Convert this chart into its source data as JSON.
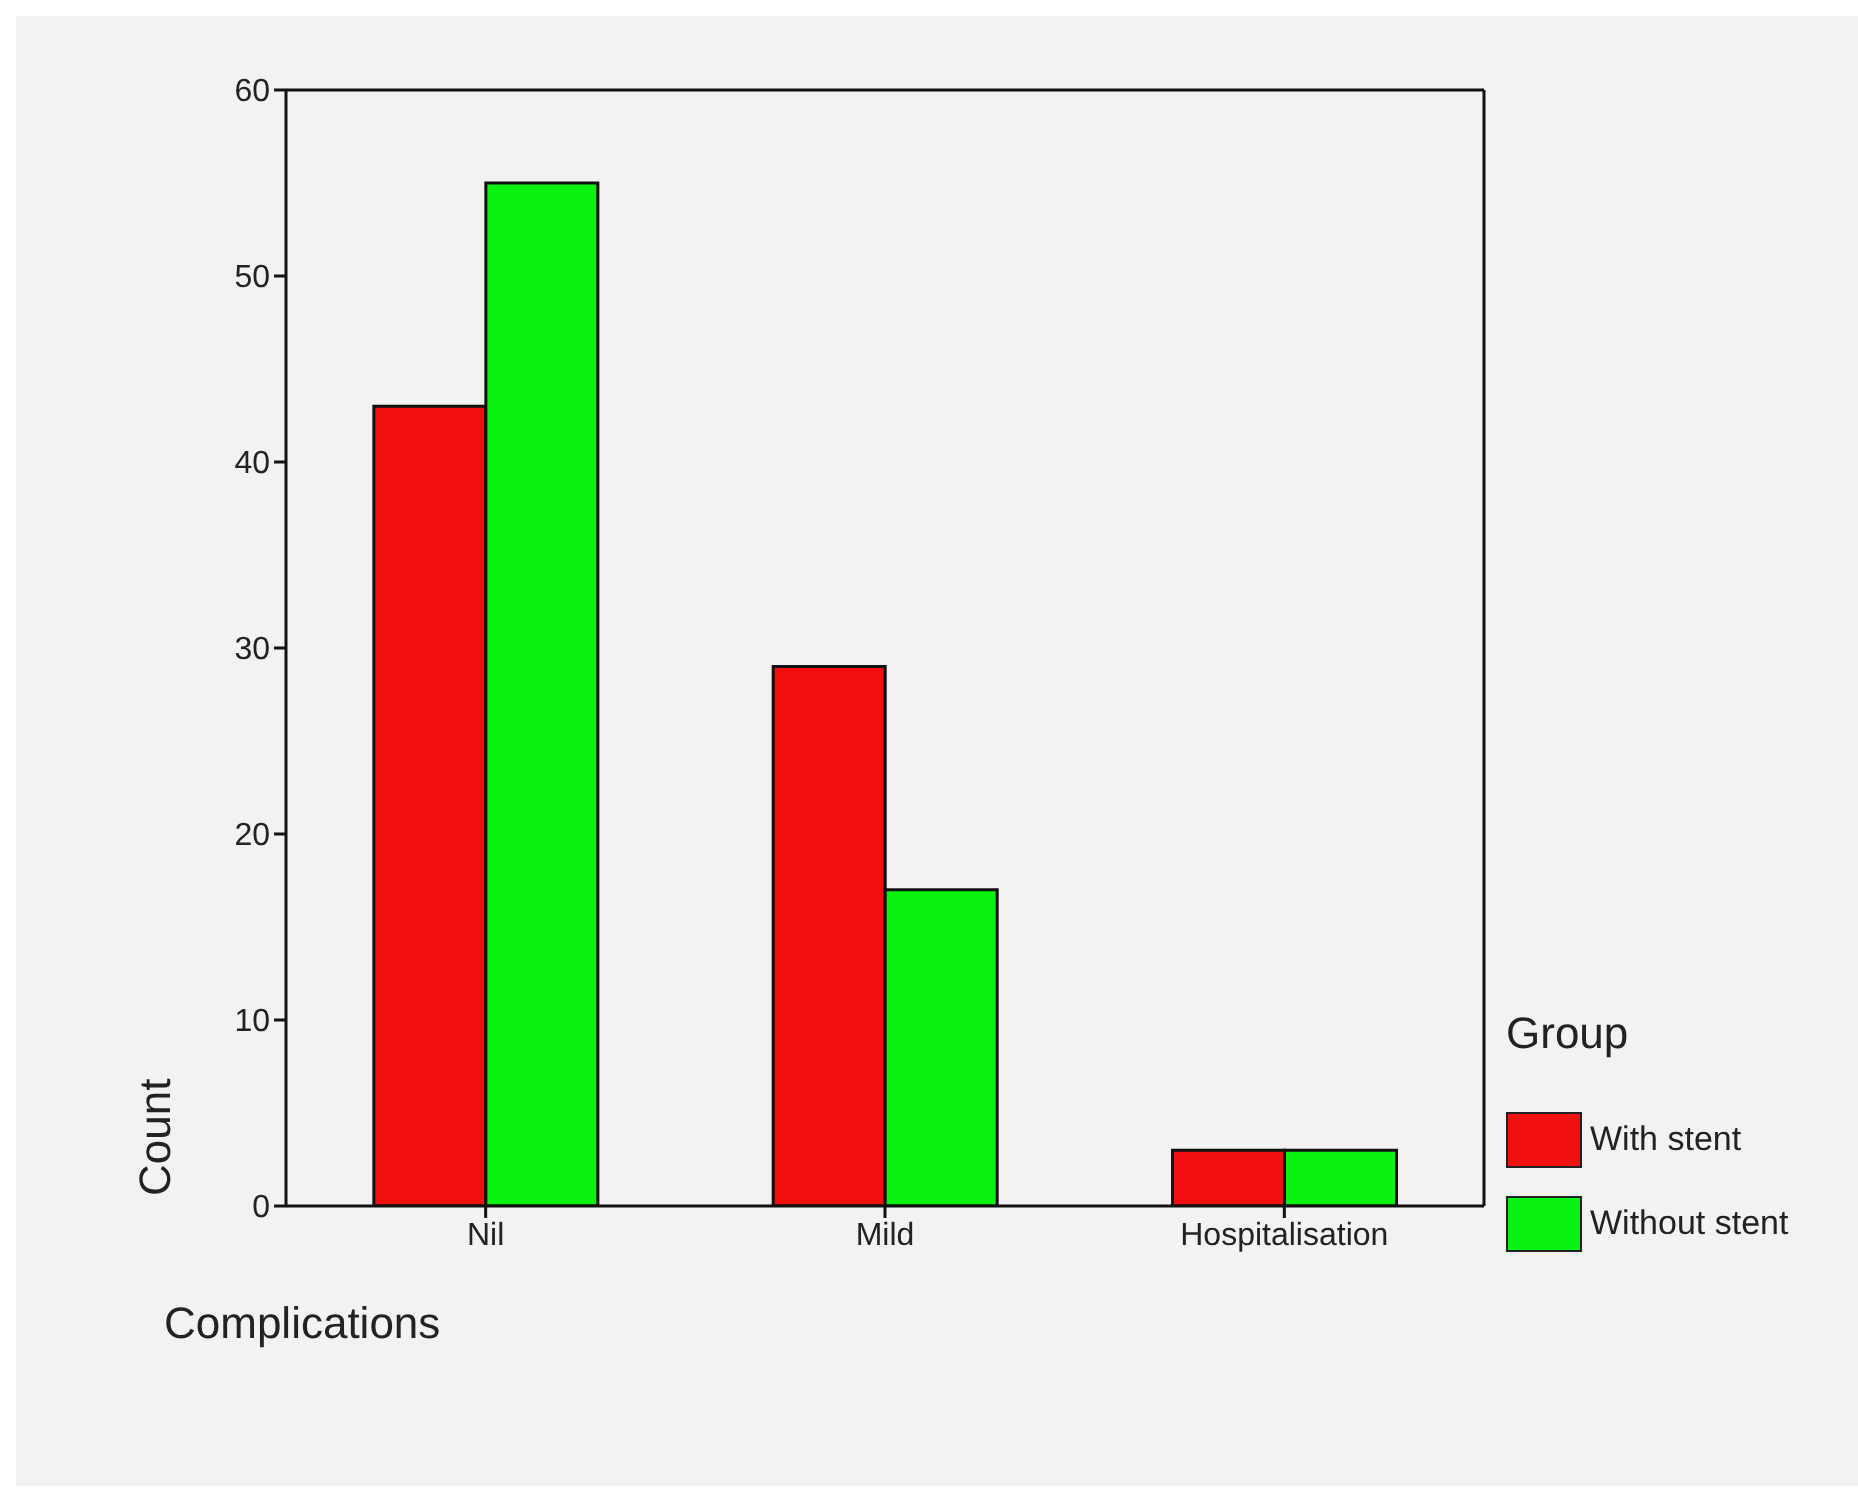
{
  "chart_data": {
    "type": "bar",
    "xlabel": "Complications",
    "ylabel": "Count",
    "legend_title": "Group",
    "legend": "right",
    "categories": [
      "Nil",
      "Mild",
      "Hospitalisation"
    ],
    "series": [
      {
        "name": "With stent",
        "color": "#f20f0f",
        "values": [
          43,
          29,
          3
        ]
      },
      {
        "name": "Without stent",
        "color": "#0af20f",
        "values": [
          55,
          17,
          3
        ]
      }
    ],
    "ylim": [
      0,
      60
    ],
    "yticks": [
      0,
      10,
      20,
      30,
      40,
      50,
      60
    ],
    "grid": false
  }
}
